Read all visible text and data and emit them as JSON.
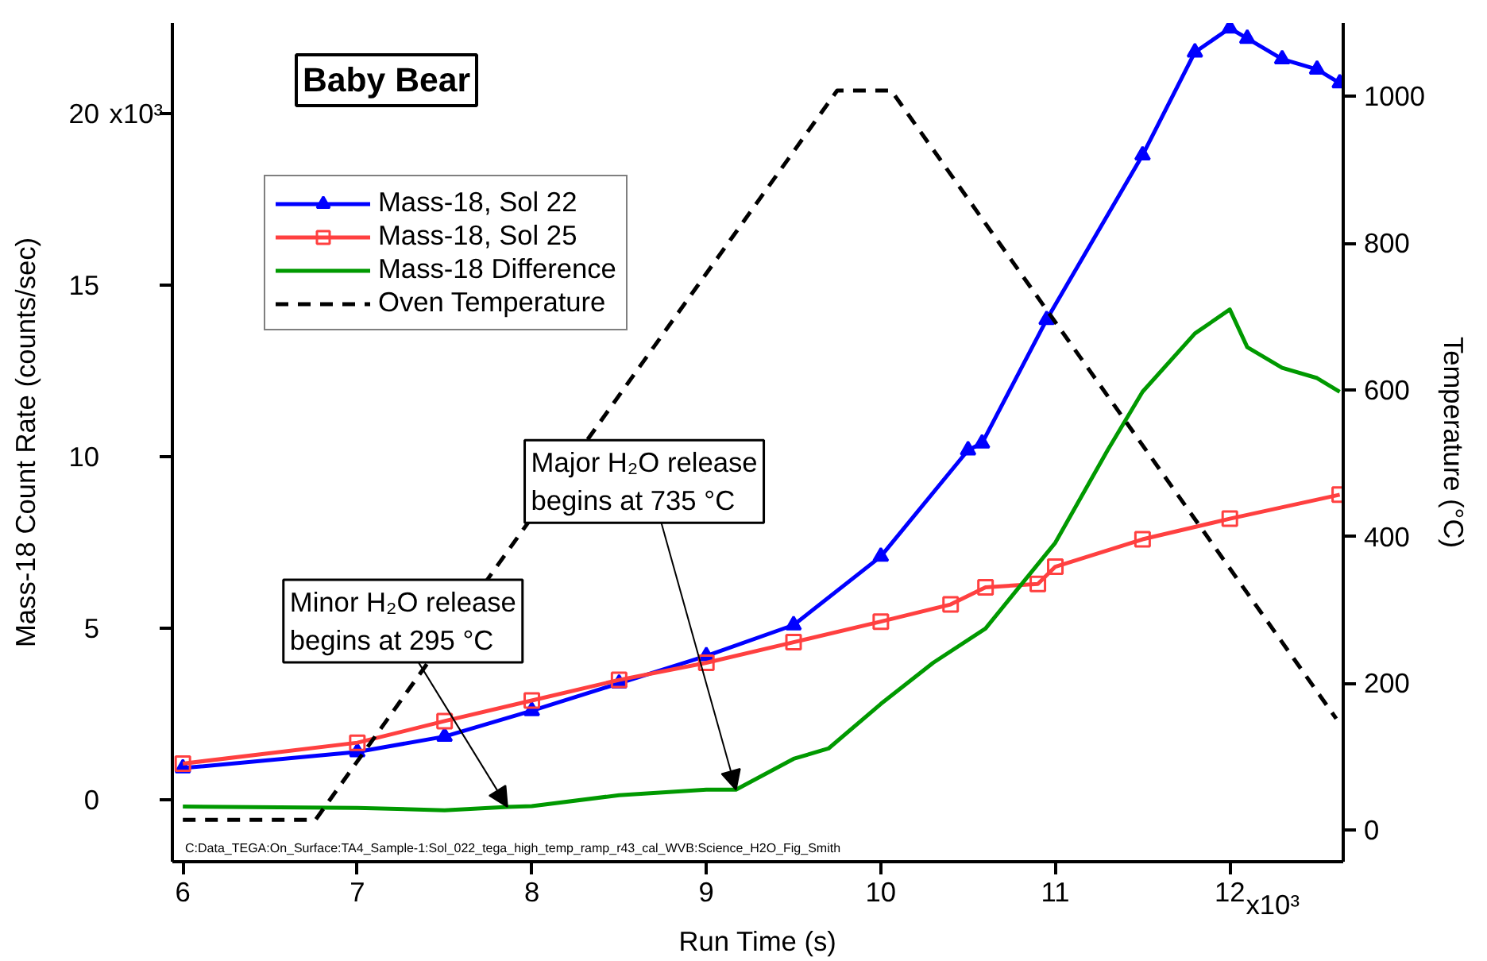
{
  "chart_data": {
    "type": "line",
    "title": "Baby Bear",
    "xlabel": "Run Time (s)",
    "ylabel": "Mass-18 Count Rate (counts/sec)",
    "y2label": "Temperature (°C)",
    "xlim": [
      5.94,
      12.65
    ],
    "ylim": [
      -1.8,
      22.65
    ],
    "y2lim": [
      -43,
      1100
    ],
    "xticks": [
      6,
      7,
      8,
      9,
      10,
      11,
      12
    ],
    "yticks": [
      0,
      5,
      10,
      15,
      20
    ],
    "y2ticks": [
      0,
      200,
      400,
      600,
      800,
      1000
    ],
    "grid": false,
    "legend": "top left",
    "series": [
      {
        "name": "Mass-18, Sol 22",
        "color": "#0000ff",
        "marker": "triangle",
        "x": [
          6.0,
          7.0,
          7.5,
          8.0,
          8.5,
          9.0,
          9.5,
          10.0,
          10.5,
          10.58,
          10.95,
          11.5,
          11.8,
          12.0,
          12.1,
          12.3,
          12.5,
          12.63
        ],
        "values": [
          0.93,
          1.4,
          1.85,
          2.6,
          3.4,
          4.2,
          5.1,
          7.1,
          10.2,
          10.4,
          14.0,
          18.8,
          21.8,
          22.5,
          22.2,
          21.6,
          21.3,
          20.9
        ]
      },
      {
        "name": "Mass-18, Sol 25",
        "color": "#ff4040",
        "marker": "square",
        "x": [
          6.0,
          7.0,
          7.5,
          8.0,
          8.5,
          9.0,
          9.5,
          10.0,
          10.4,
          10.6,
          10.9,
          11.0,
          11.5,
          12.0,
          12.63
        ],
        "values": [
          1.06,
          1.67,
          2.3,
          2.9,
          3.5,
          4.0,
          4.6,
          5.2,
          5.7,
          6.2,
          6.3,
          6.8,
          7.6,
          8.2,
          8.9
        ]
      },
      {
        "name": "Mass-18 Difference",
        "color": "#009900",
        "x": [
          6.0,
          7.0,
          7.5,
          7.86,
          8.0,
          8.5,
          9.0,
          9.17,
          9.5,
          9.7,
          10.0,
          10.3,
          10.6,
          11.0,
          11.3,
          11.5,
          11.8,
          12.0,
          12.1,
          12.3,
          12.5,
          12.63
        ],
        "values": [
          -0.19,
          -0.23,
          -0.3,
          -0.2,
          -0.18,
          0.14,
          0.3,
          0.3,
          1.2,
          1.5,
          2.8,
          4.0,
          5.0,
          7.5,
          10.2,
          11.9,
          13.6,
          14.3,
          13.2,
          12.6,
          12.3,
          11.9
        ]
      },
      {
        "name": "Oven Temperature",
        "color": "#000000",
        "axis": "y2",
        "line_style": "dashed",
        "x": [
          6.0,
          6.76,
          9.75,
          10.06,
          12.61
        ],
        "values": [
          14,
          14,
          1008,
          1008,
          152
        ]
      }
    ],
    "annotations": [
      {
        "text": "Minor H₂O release\nbegins at 295 °C",
        "x": 7.86,
        "y": -0.2
      },
      {
        "text": "Major H₂O release\nbegins at 735 °C",
        "x": 9.17,
        "y": 0.3
      },
      "C:Data_TEGA:On_Surface:TA4_Sample-1:Sol_022_tega_high_temp_ramp_r43_cal_WVB:Science_H2O_Fig_Smith",
      "x10³",
      "x10³"
    ]
  }
}
